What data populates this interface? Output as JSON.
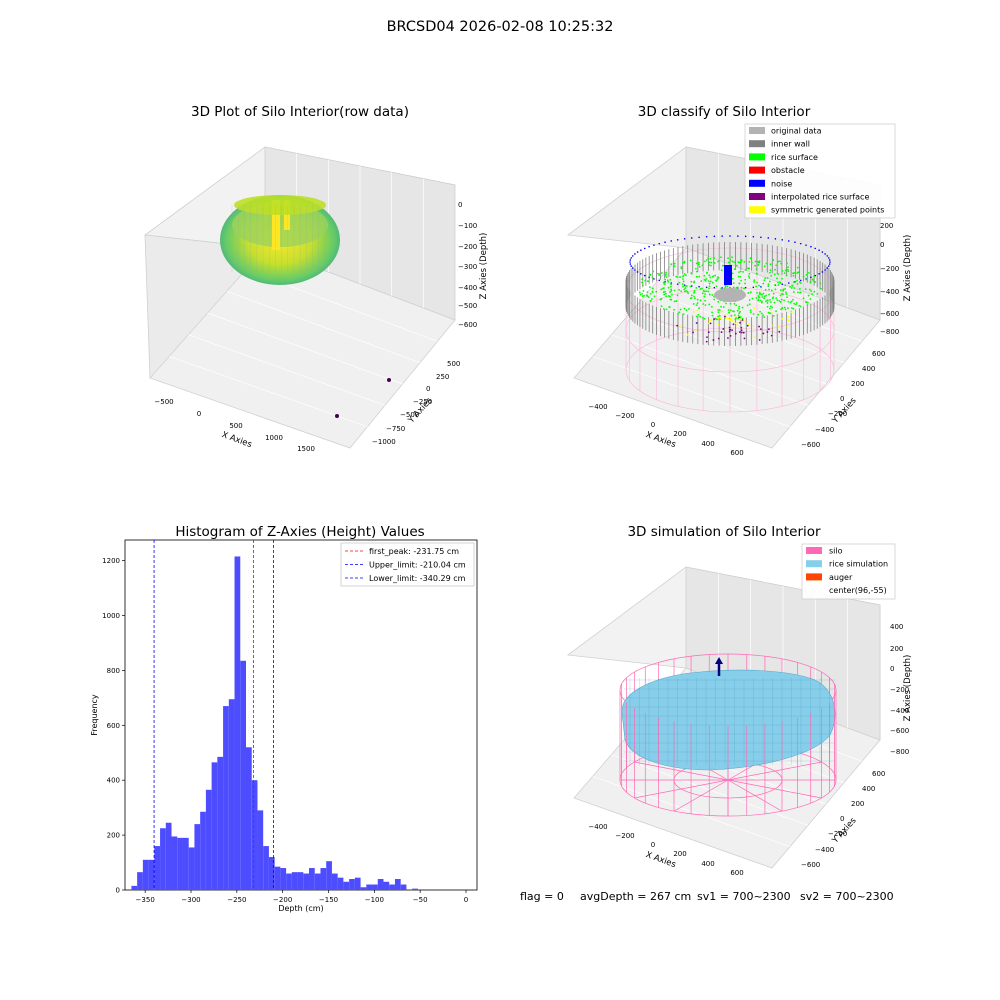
{
  "figure_title": "BRCSD04 2026-02-08 10:25:32",
  "status_line": {
    "flag": "flag = 0",
    "avg": "avgDepth = 267 cm",
    "sv1": "sv1 = 700~2300",
    "sv2": "sv2 = 700~2300"
  },
  "colors": {
    "original_data": "#b3b3b3",
    "inner_wall": "#808080",
    "rice_surface": "#00ff00",
    "obstacle": "#ff0000",
    "noise": "#0000ff",
    "interpolated": "#800080",
    "symmetric": "#ffff00",
    "silo": "#ff69b4",
    "rice_sim": "#87ceeb",
    "auger": "#ff4500",
    "hist_bar": "#4d4dff",
    "peak_line": "#ff0000",
    "limit_line": "#0000ff"
  },
  "chart_data": [
    {
      "type": "scatter",
      "projection": "3d",
      "title": "3D Plot of Silo Interior(row data)",
      "xlabel": "X Axies",
      "ylabel": "Y Axies",
      "zlabel": "Z Axies (Depth)",
      "xticks": [
        "−500",
        "0",
        "500",
        "1000",
        "1500"
      ],
      "yticks": [
        "500",
        "250",
        "0",
        "−250",
        "−500",
        "−750",
        "−1000"
      ],
      "zticks": [
        "0",
        "−100",
        "−200",
        "−300",
        "−400",
        "−500",
        "−600"
      ],
      "colormap": "viridis",
      "outlier_points": [
        [
          1750,
          -650,
          -650
        ],
        [
          1450,
          -850,
          -650
        ]
      ]
    },
    {
      "type": "scatter",
      "projection": "3d",
      "title": "3D classify of Silo Interior",
      "xlabel": "X Axies",
      "ylabel": "Y Axies",
      "zlabel": "Z Axies (Depth)",
      "xticks": [
        "−400",
        "−200",
        "0",
        "200",
        "400",
        "600"
      ],
      "yticks": [
        "600",
        "400",
        "200",
        "0",
        "−200",
        "−400",
        "−600"
      ],
      "zticks": [
        "200",
        "0",
        "−200",
        "−400",
        "−600",
        "−800"
      ],
      "legend": [
        "original data",
        "inner wall",
        "rice surface",
        "obstacle",
        "noise",
        "interpolated rice surface",
        "symmetric generated points"
      ],
      "legend_loc": "upper right"
    },
    {
      "type": "bar",
      "title": "Histogram of Z-Axies (Height) Values",
      "xlabel": "Depth (cm)",
      "ylabel": "Frequency",
      "xlim": [
        -372,
        12
      ],
      "ylim": [
        0,
        1275
      ],
      "xticks": [
        -350,
        -300,
        -250,
        -200,
        -150,
        -100,
        -50,
        0
      ],
      "xtick_labels": [
        "−350",
        "−300",
        "−250",
        "−200",
        "−150",
        "−100",
        "−50",
        "0"
      ],
      "yticks": [
        0,
        200,
        400,
        600,
        800,
        1000,
        1200
      ],
      "bin_start": -365,
      "bin_width": 6.25,
      "values": [
        15,
        65,
        110,
        110,
        160,
        225,
        245,
        195,
        190,
        190,
        155,
        240,
        285,
        365,
        465,
        485,
        670,
        695,
        1215,
        835,
        520,
        400,
        290,
        160,
        120,
        85,
        80,
        60,
        65,
        65,
        60,
        80,
        60,
        80,
        105,
        60,
        45,
        30,
        40,
        45,
        10,
        20,
        20,
        40,
        30,
        20,
        40,
        20,
        0,
        5
      ],
      "vlines": [
        {
          "x": -231.75,
          "label": "first_peak: -231.75 cm",
          "color": "red"
        },
        {
          "x": -210.04,
          "label": "Upper_limit: -210.04 cm",
          "color": "blue"
        },
        {
          "x": -340.29,
          "label": "Lower_limit: -340.29 cm",
          "color": "blue"
        }
      ],
      "legend_loc": "upper right"
    },
    {
      "type": "surface",
      "projection": "3d",
      "title": "3D simulation of Silo Interior",
      "xlabel": "X Axies",
      "ylabel": "Y Axies",
      "zlabel": "Z Axies (Depth)",
      "xticks": [
        "−400",
        "−200",
        "0",
        "200",
        "400",
        "600"
      ],
      "yticks": [
        "600",
        "400",
        "200",
        "0",
        "−200",
        "−400",
        "−600"
      ],
      "zticks": [
        "400",
        "200",
        "0",
        "−200",
        "−400",
        "−600",
        "−800"
      ],
      "legend": [
        "silo",
        "rice simulation",
        "auger",
        "center(96,-55)"
      ],
      "legend_loc": "upper right"
    }
  ]
}
